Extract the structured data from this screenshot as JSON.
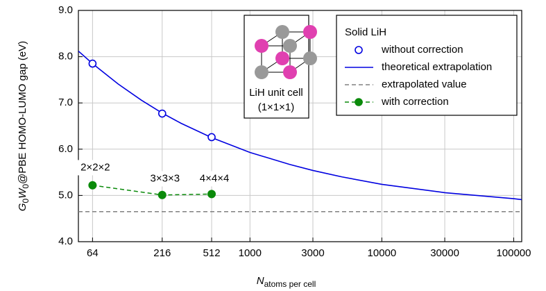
{
  "chart_data": {
    "type": "scatter",
    "xscale": "log",
    "xlim": [
      50,
      115000
    ],
    "ylim": [
      4.0,
      9.0
    ],
    "xticks": [
      64,
      216,
      512,
      1000,
      3000,
      10000,
      30000,
      100000
    ],
    "yticks": [
      {
        "value": 4.0,
        "label": "4.0"
      },
      {
        "value": 5.0,
        "label": "5.0"
      },
      {
        "value": 6.0,
        "label": "6.0"
      },
      {
        "value": 7.0,
        "label": "7.0"
      },
      {
        "value": 8.0,
        "label": "8.0"
      },
      {
        "value": 9.0,
        "label": "9.0"
      }
    ],
    "grid": true,
    "xlabel": [
      "N",
      "atoms per cell"
    ],
    "ylabel": [
      "G",
      "0",
      "W",
      "0",
      "@PBE HOMO-LUMO gap (eV)"
    ],
    "legend_title": "Solid LiH",
    "legend": "upper right",
    "series": [
      {
        "name": "without correction",
        "color": "#0000e0",
        "marker": "open-circle",
        "linestyle": null,
        "x": [
          64,
          216,
          512
        ],
        "values": [
          7.85,
          6.77,
          6.26
        ]
      },
      {
        "name": "theoretical extrapolation",
        "color": "#0000e0",
        "marker": null,
        "linestyle": "solid",
        "x": [
          50,
          64,
          100,
          150,
          216,
          300,
          512,
          1000,
          2000,
          3000,
          5000,
          10000,
          30000,
          100000,
          115000
        ],
        "values": [
          8.12,
          7.85,
          7.41,
          7.06,
          6.78,
          6.56,
          6.25,
          5.93,
          5.67,
          5.54,
          5.4,
          5.24,
          5.06,
          4.93,
          4.91
        ]
      },
      {
        "name": "extrapolated value",
        "color": "#808080",
        "marker": null,
        "linestyle": "dashed",
        "x": [
          50,
          115000
        ],
        "values": [
          4.65,
          4.65
        ]
      },
      {
        "name": "with correction",
        "color": "#0a8a0a",
        "marker": "filled-circle",
        "linestyle": "dashed",
        "x": [
          64,
          216,
          512
        ],
        "values": [
          5.22,
          5.01,
          5.03
        ]
      }
    ],
    "annotations": [
      {
        "text": "2×2×2",
        "x": 64,
        "y": 5.6
      },
      {
        "text": "3×3×3",
        "x": 216,
        "y": 5.36
      },
      {
        "text": "4×4×4",
        "x": 512,
        "y": 5.36
      }
    ],
    "inset": {
      "label": "LiH unit cell",
      "sublabel": "(1×1×1)"
    }
  }
}
